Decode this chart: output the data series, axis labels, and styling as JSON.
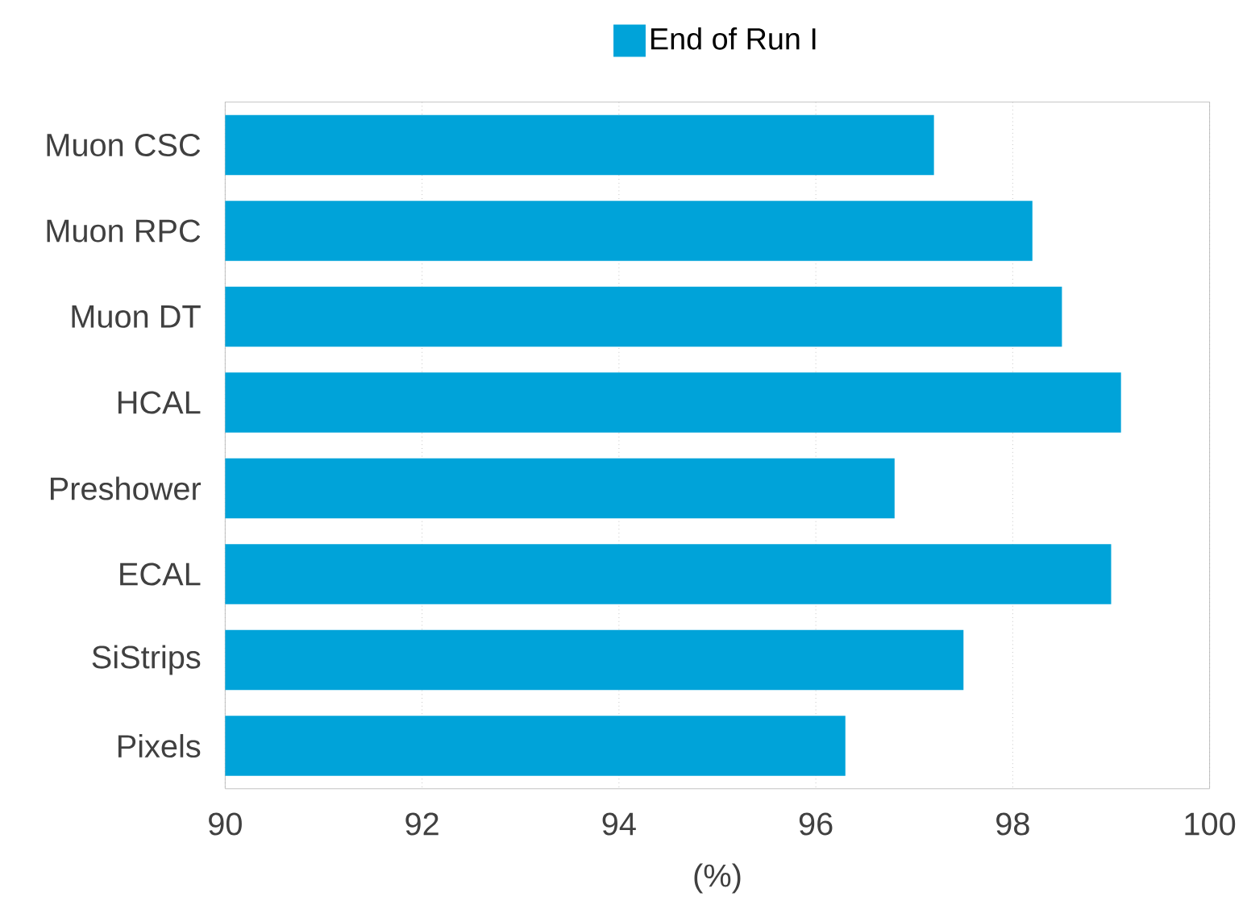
{
  "chart_data": {
    "type": "bar",
    "orientation": "horizontal",
    "categories": [
      "Muon CSC",
      "Muon RPC",
      "Muon DT",
      "HCAL",
      "Preshower",
      "ECAL",
      "SiStrips",
      "Pixels"
    ],
    "series": [
      {
        "name": "End of Run I",
        "color": "#00a3d9",
        "values": [
          97.2,
          98.2,
          98.5,
          99.1,
          96.8,
          99.0,
          97.5,
          96.3
        ]
      }
    ],
    "xlim": [
      90,
      100
    ],
    "xticks": [
      90,
      92,
      94,
      96,
      98,
      100
    ],
    "xlabel": "(%)",
    "grid": "x",
    "legend": "top"
  }
}
